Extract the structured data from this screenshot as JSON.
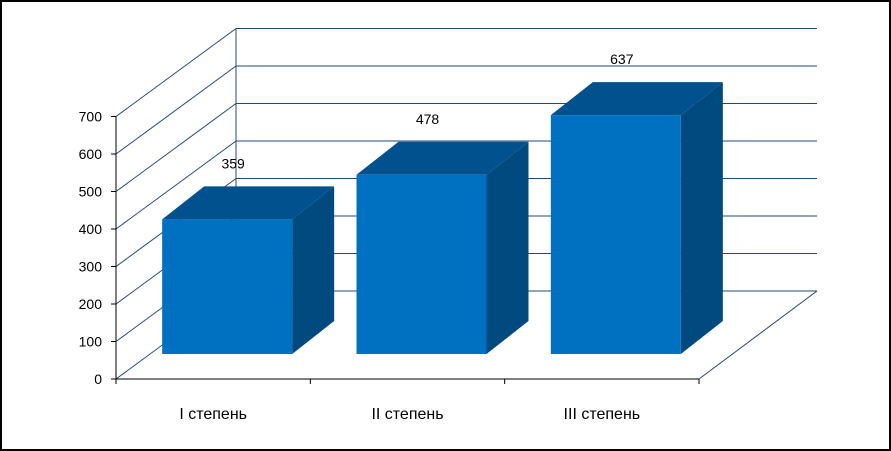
{
  "chart_data": {
    "type": "bar",
    "style": "3d-column",
    "categories": [
      "I степень",
      "II степень",
      "III степень"
    ],
    "values": [
      359,
      478,
      637
    ],
    "data_labels": [
      "359",
      "478",
      "637"
    ],
    "ylim": [
      0,
      700
    ],
    "yticks": [
      0,
      100,
      200,
      300,
      400,
      500,
      600,
      700
    ],
    "ytick_labels": [
      "0",
      "100",
      "200",
      "300",
      "400",
      "500",
      "600",
      "700"
    ],
    "grid": true,
    "legend": false,
    "title": "",
    "xlabel": "",
    "ylabel": "",
    "colors": {
      "bar_front": "#0070C0",
      "bar_side": "#004A80",
      "bar_top": "#00518E",
      "grid": "#1F497D",
      "axis": "#000000"
    }
  }
}
